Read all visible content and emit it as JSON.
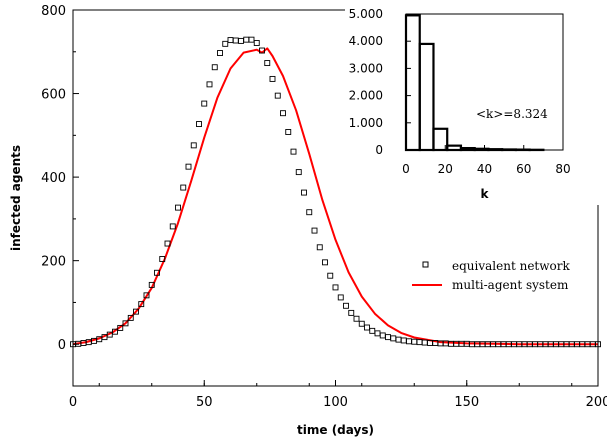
{
  "chart_data": [
    {
      "type": "line",
      "xlabel": "time (days)",
      "ylabel": "infected agents",
      "xlim": [
        0,
        200
      ],
      "ylim": [
        -100,
        800
      ],
      "x_ticks": [
        0,
        50,
        100,
        150,
        200
      ],
      "y_ticks": [
        0,
        200,
        400,
        600,
        800
      ],
      "x_tick_labels": [
        "0",
        "50",
        "100",
        "150",
        "200"
      ],
      "y_tick_labels": [
        "0",
        "200",
        "400",
        "600",
        "800"
      ],
      "legend": {
        "position": "center-right",
        "entries": [
          {
            "label": "equivalent network",
            "marker": "open-square",
            "color": "#000000"
          },
          {
            "label": "multi-agent system",
            "marker": "line",
            "color": "#ff0000"
          }
        ]
      },
      "series": [
        {
          "name": "equivalent network",
          "style": "markers",
          "color": "#000000",
          "x": [
            0,
            2,
            4,
            6,
            8,
            10,
            12,
            14,
            16,
            18,
            20,
            22,
            24,
            26,
            28,
            30,
            32,
            34,
            36,
            38,
            40,
            42,
            44,
            46,
            48,
            50,
            52,
            54,
            56,
            58,
            60,
            62,
            64,
            66,
            68,
            70,
            72,
            74,
            76,
            78,
            80,
            82,
            84,
            86,
            88,
            90,
            92,
            94,
            96,
            98,
            100,
            102,
            104,
            106,
            108,
            110,
            112,
            114,
            116,
            118,
            120,
            122,
            124,
            126,
            128,
            130,
            132,
            134,
            136,
            138,
            140,
            142,
            144,
            146,
            148,
            150,
            152,
            154,
            156,
            158,
            160,
            162,
            164,
            166,
            168,
            170,
            172,
            174,
            176,
            178,
            180,
            182,
            184,
            186,
            188,
            190,
            192,
            194,
            196,
            198,
            200
          ],
          "y": [
            0,
            1,
            3,
            5,
            8,
            12,
            17,
            23,
            30,
            39,
            50,
            63,
            78,
            96,
            117,
            142,
            171,
            204,
            241,
            282,
            327,
            375,
            425,
            476,
            527,
            576,
            622,
            663,
            697,
            719,
            728,
            727,
            726,
            729,
            729,
            721,
            703,
            673,
            635,
            595,
            553,
            508,
            461,
            412,
            363,
            316,
            272,
            232,
            196,
            164,
            136,
            112,
            92,
            75,
            61,
            49,
            40,
            32,
            26,
            21,
            17,
            14,
            11,
            9,
            7,
            6,
            5,
            4,
            3,
            3,
            2,
            2,
            1,
            1,
            1,
            1,
            0,
            0,
            0,
            0,
            0,
            0,
            0,
            0,
            0,
            0,
            0,
            0,
            0,
            0,
            0,
            0,
            0,
            0,
            0,
            0,
            0,
            0,
            0,
            0,
            0
          ]
        },
        {
          "name": "multi-agent system",
          "style": "line",
          "color": "#ff0000",
          "x": [
            0,
            5,
            10,
            15,
            20,
            25,
            30,
            35,
            40,
            45,
            50,
            55,
            60,
            65,
            70,
            72,
            74,
            76,
            80,
            85,
            90,
            95,
            100,
            105,
            110,
            115,
            120,
            125,
            130,
            140,
            150,
            160,
            170,
            180,
            190,
            200
          ],
          "y": [
            0,
            5,
            14,
            28,
            50,
            85,
            135,
            205,
            290,
            390,
            495,
            590,
            660,
            698,
            705,
            698,
            708,
            690,
            642,
            560,
            455,
            345,
            250,
            172,
            114,
            73,
            45,
            27,
            16,
            5,
            2,
            1,
            0,
            0,
            0,
            0
          ]
        }
      ]
    },
    {
      "type": "bar",
      "subtype": "histogram-inset",
      "xlabel": "k",
      "ylabel": "",
      "xlim": [
        0,
        80
      ],
      "ylim": [
        0,
        5000
      ],
      "x_ticks": [
        0,
        20,
        40,
        60,
        80
      ],
      "y_ticks": [
        0,
        1000,
        2000,
        3000,
        4000,
        5000
      ],
      "x_tick_labels": [
        "0",
        "20",
        "40",
        "60",
        "80"
      ],
      "y_tick_labels": [
        "0",
        "1.000",
        "2.000",
        "3.000",
        "4.000",
        "5.000"
      ],
      "annotation": "<k>=8.324",
      "bins": [
        {
          "from": 0,
          "to": 7,
          "value": 4950
        },
        {
          "from": 7,
          "to": 14,
          "value": 3900
        },
        {
          "from": 14,
          "to": 21,
          "value": 780
        },
        {
          "from": 21,
          "to": 28,
          "value": 160
        },
        {
          "from": 28,
          "to": 35,
          "value": 70
        },
        {
          "from": 35,
          "to": 42,
          "value": 45
        },
        {
          "from": 42,
          "to": 49,
          "value": 30
        },
        {
          "from": 49,
          "to": 56,
          "value": 20
        },
        {
          "from": 56,
          "to": 63,
          "value": 15
        },
        {
          "from": 63,
          "to": 70,
          "value": 8
        }
      ]
    }
  ]
}
